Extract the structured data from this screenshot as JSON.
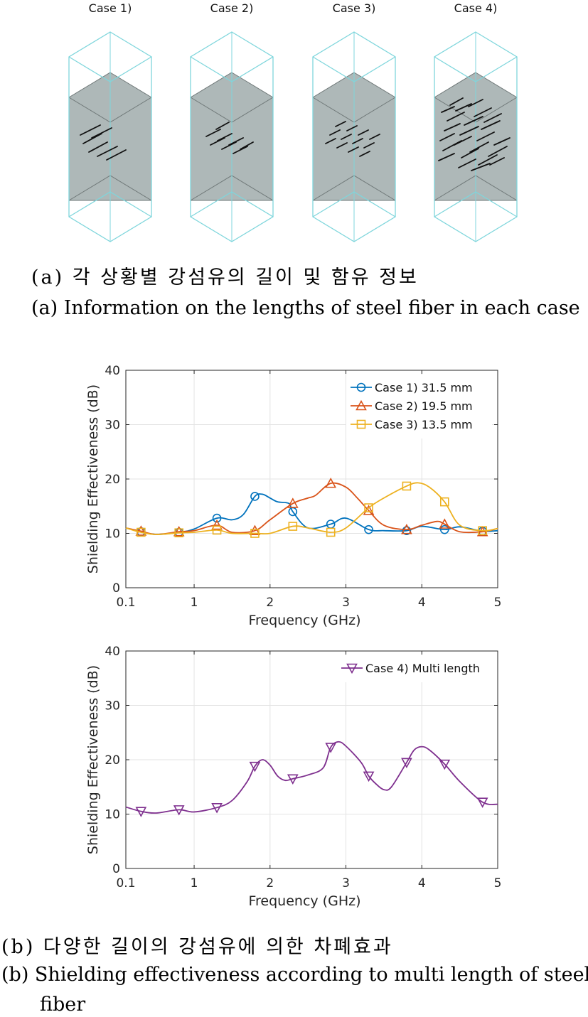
{
  "figure_a": {
    "case_labels": [
      "Case 1)",
      "Case 2)",
      "Case 3)",
      "Case 4)"
    ],
    "caption_ko": "(a) 각 상황별 강섬유의 길이 및 함유 정보",
    "caption_en": "(a) Information on the lengths of steel fiber in each case",
    "colors": {
      "outer_box": "#7fd6dc",
      "core": "#aeb8b8",
      "fiber": "#111111"
    }
  },
  "figure_b": {
    "caption_ko": "(b) 다양한 길이의 강섬유에 의한 차폐효과",
    "caption_en_line1": "(b) Shielding effectiveness according to multi length of steel",
    "caption_en_line2": "fiber"
  },
  "chart_data": [
    {
      "type": "line",
      "xlabel": "Frequency (GHz)",
      "ylabel": "Shielding Effectiveness (dB)",
      "xlim": [
        0.1,
        5
      ],
      "ylim": [
        0,
        40
      ],
      "xticks": [
        0.1,
        1,
        2,
        3,
        4,
        5
      ],
      "xtick_labels": [
        "0.1",
        "1",
        "2",
        "3",
        "4",
        "5"
      ],
      "yticks": [
        0,
        10,
        20,
        30,
        40
      ],
      "ytick_labels": [
        "0",
        "10",
        "20",
        "30",
        "40"
      ],
      "grid": true,
      "legend_position": "top-right",
      "series": [
        {
          "name": "Case 1) 31.5 mm",
          "color": "#0072bd",
          "marker": "circle",
          "x": [
            0.1,
            0.3,
            0.5,
            0.8,
            1.0,
            1.3,
            1.5,
            1.65,
            1.8,
            1.9,
            2.0,
            2.1,
            2.25,
            2.3,
            2.5,
            2.8,
            3.0,
            3.3,
            3.5,
            3.8,
            4.0,
            4.3,
            4.5,
            4.8,
            5.0
          ],
          "y": [
            11,
            10.3,
            9.8,
            10.2,
            10.8,
            12.8,
            12.5,
            13.5,
            16.8,
            17.2,
            16.5,
            15.8,
            15.5,
            14.0,
            11.0,
            11.7,
            12.8,
            10.7,
            10.5,
            10.5,
            11.3,
            10.7,
            11.2,
            10.4,
            10.5
          ],
          "marker_x": [
            0.3,
            0.8,
            1.3,
            1.8,
            2.3,
            2.8,
            3.3,
            3.8,
            4.3,
            4.8
          ],
          "marker_y": [
            10.3,
            10.2,
            12.8,
            16.8,
            14.0,
            11.7,
            10.7,
            10.5,
            10.7,
            10.4
          ]
        },
        {
          "name": "Case 2) 19.5 mm",
          "color": "#d95319",
          "marker": "triangle-up",
          "x": [
            0.1,
            0.3,
            0.5,
            0.8,
            1.0,
            1.3,
            1.5,
            1.8,
            2.0,
            2.3,
            2.5,
            2.6,
            2.8,
            3.0,
            3.15,
            3.3,
            3.5,
            3.8,
            4.0,
            4.2,
            4.3,
            4.5,
            4.8,
            5.0
          ],
          "y": [
            11,
            10.4,
            9.8,
            10.3,
            10.5,
            11.5,
            10.2,
            10.5,
            12.5,
            15.5,
            16.5,
            17.0,
            19.2,
            18.5,
            16.5,
            14.2,
            11.5,
            10.7,
            11.5,
            12.2,
            11.7,
            10.3,
            10.3,
            10.9
          ],
          "marker_x": [
            0.3,
            0.8,
            1.3,
            1.8,
            2.3,
            2.8,
            3.3,
            3.8,
            4.3,
            4.8
          ],
          "marker_y": [
            10.4,
            10.3,
            11.5,
            10.5,
            15.5,
            19.2,
            14.2,
            10.7,
            11.7,
            10.3
          ]
        },
        {
          "name": "Case 3) 13.5 mm",
          "color": "#edb120",
          "marker": "square",
          "x": [
            0.1,
            0.3,
            0.5,
            0.8,
            1.0,
            1.3,
            1.5,
            1.8,
            2.0,
            2.3,
            2.5,
            2.8,
            3.0,
            3.3,
            3.5,
            3.8,
            3.95,
            4.1,
            4.3,
            4.5,
            4.8,
            5.0
          ],
          "y": [
            11,
            10.2,
            9.8,
            10.1,
            10.2,
            10.6,
            10.0,
            10.0,
            10.0,
            11.3,
            11.0,
            10.2,
            11.0,
            14.7,
            16.5,
            18.7,
            19.3,
            18.5,
            15.8,
            11.5,
            10.5,
            10.9
          ],
          "marker_x": [
            0.3,
            0.8,
            1.3,
            1.8,
            2.3,
            2.8,
            3.3,
            3.8,
            4.3,
            4.8
          ],
          "marker_y": [
            10.2,
            10.1,
            10.6,
            10.0,
            11.3,
            10.2,
            14.7,
            18.7,
            15.8,
            10.5
          ]
        }
      ]
    },
    {
      "type": "line",
      "xlabel": "Frequency (GHz)",
      "ylabel": "Shielding Effectiveness (dB)",
      "xlim": [
        0.1,
        5
      ],
      "ylim": [
        0,
        40
      ],
      "xticks": [
        0.1,
        1,
        2,
        3,
        4,
        5
      ],
      "xtick_labels": [
        "0.1",
        "1",
        "2",
        "3",
        "4",
        "5"
      ],
      "yticks": [
        0,
        10,
        20,
        30,
        40
      ],
      "ytick_labels": [
        "0",
        "10",
        "20",
        "30",
        "40"
      ],
      "grid": true,
      "legend_position": "top-right",
      "series": [
        {
          "name": "Case 4) Multi length",
          "color": "#7e2f8e",
          "marker": "triangle-down",
          "x": [
            0.1,
            0.3,
            0.5,
            0.8,
            1.0,
            1.3,
            1.5,
            1.7,
            1.8,
            1.9,
            2.0,
            2.1,
            2.2,
            2.3,
            2.5,
            2.7,
            2.8,
            2.9,
            3.0,
            3.2,
            3.3,
            3.4,
            3.5,
            3.6,
            3.8,
            3.9,
            4.0,
            4.1,
            4.3,
            4.5,
            4.8,
            5.0
          ],
          "y": [
            11.3,
            10.5,
            10.2,
            10.8,
            10.4,
            11.2,
            12.5,
            16.0,
            18.8,
            20.0,
            19.0,
            17.0,
            16.2,
            16.5,
            17.2,
            18.5,
            22.3,
            23.3,
            22.5,
            19.5,
            17.0,
            15.5,
            14.5,
            15.0,
            19.5,
            21.8,
            22.4,
            21.8,
            19.2,
            16.0,
            12.2,
            11.8
          ],
          "marker_x": [
            0.3,
            0.8,
            1.3,
            1.8,
            2.3,
            2.8,
            3.3,
            3.8,
            4.3,
            4.8
          ],
          "marker_y": [
            10.5,
            10.8,
            11.2,
            18.8,
            16.5,
            22.3,
            17.0,
            19.5,
            19.2,
            12.2
          ]
        }
      ]
    }
  ]
}
